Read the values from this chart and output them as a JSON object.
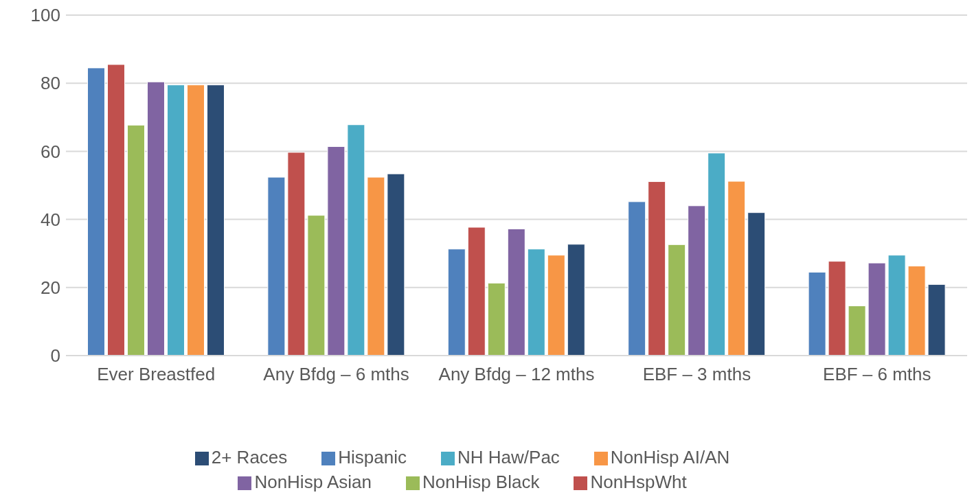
{
  "chart_data": {
    "type": "bar",
    "categories": [
      "Ever Breastfed",
      "Any Bfdg – 6 mths",
      "Any Bfdg – 12 mths",
      "EBF – 3 mths",
      "EBF – 6 mths"
    ],
    "series": [
      {
        "name": "Hispanic",
        "color": "#4f81bd",
        "values": [
          84.5,
          52.4,
          31.3,
          45.2,
          24.5
        ]
      },
      {
        "name": "NonHspWht",
        "color": "#c0504d",
        "values": [
          85.5,
          59.7,
          37.7,
          51.1,
          27.7
        ]
      },
      {
        "name": "NonHisp Black",
        "color": "#9bbb59",
        "values": [
          67.7,
          41.2,
          21.3,
          32.6,
          14.6
        ]
      },
      {
        "name": "NonHisp Asian",
        "color": "#8064a2",
        "values": [
          80.4,
          61.4,
          37.2,
          44,
          27.2
        ]
      },
      {
        "name": "NH Haw/Pac",
        "color": "#4bacc6",
        "values": [
          79.5,
          67.8,
          31.3,
          59.5,
          29.5
        ]
      },
      {
        "name": "NonHisp AI/AN",
        "color": "#f79646",
        "values": [
          79.5,
          52.4,
          29.5,
          51.2,
          26.3
        ]
      },
      {
        "name": "2+ Races",
        "color": "#2c4d75",
        "values": [
          79.5,
          53.4,
          32.7,
          42,
          20.9
        ]
      }
    ],
    "ylim": [
      0,
      100
    ],
    "yticks": [
      0,
      20,
      40,
      60,
      80,
      100
    ],
    "grid": "y",
    "legend": "bottom"
  }
}
